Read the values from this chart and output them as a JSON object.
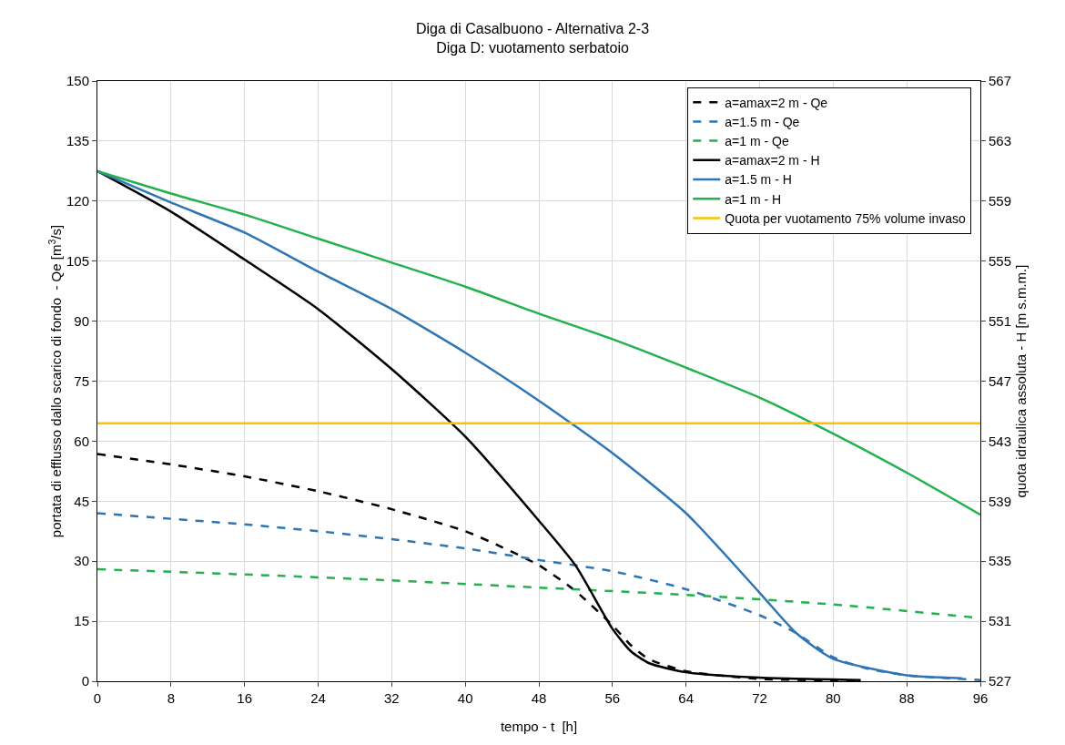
{
  "chart_data": {
    "type": "line",
    "title": "Diga di Casalbuono - Alternativa 2-3",
    "subtitle": "Diga D: vuotamento serbatoio",
    "xlabel": "tempo - t  [h]",
    "ylabel": "portata di efflusso dallo scarico di fondo  - Qe [m$^{3}$/s]",
    "y2label": "quota idraulica assoluta - H [m s.m.m.]",
    "xlim": [
      0,
      96
    ],
    "xticks": [
      0,
      8,
      16,
      24,
      32,
      40,
      48,
      56,
      64,
      72,
      80,
      88,
      96
    ],
    "ylim": [
      0,
      150
    ],
    "yticks": [
      0,
      15,
      30,
      45,
      60,
      75,
      90,
      105,
      120,
      135,
      150
    ],
    "y2lim": [
      527,
      567
    ],
    "y2ticks": [
      527,
      531,
      535,
      539,
      543,
      547,
      551,
      555,
      559,
      563,
      567
    ],
    "grid": true,
    "legend": "top right",
    "series": [
      {
        "name": "a=amax=2 m - Qe",
        "color": "#000000",
        "line_style": "dashed",
        "x": [
          0,
          8,
          16,
          24,
          32,
          40,
          44,
          48,
          52,
          56,
          58,
          60,
          64,
          72,
          80,
          83
        ],
        "values": [
          56.8,
          54.2,
          51.2,
          47.5,
          43,
          37.5,
          33.5,
          29,
          22.5,
          14,
          9,
          5.5,
          2.5,
          0.6,
          0.2,
          0.1
        ]
      },
      {
        "name": "a=1.5 m - Qe",
        "color": "#2e75b6",
        "line_style": "dashed",
        "x": [
          0,
          8,
          16,
          24,
          32,
          40,
          48,
          56,
          64,
          72,
          76,
          80,
          84,
          88,
          96
        ],
        "values": [
          42,
          40.6,
          39.2,
          37.5,
          35.5,
          33.2,
          30.3,
          27.5,
          23,
          16.5,
          12,
          6,
          3,
          1.5,
          0.3
        ]
      },
      {
        "name": "a=1 m - Qe",
        "color": "#22b14c",
        "line_style": "dashed",
        "x": [
          0,
          16,
          32,
          48,
          64,
          80,
          96
        ],
        "values": [
          28,
          26.7,
          25.2,
          23.4,
          21.6,
          19.2,
          15.8
        ]
      },
      {
        "name": "a=amax=2 m - H",
        "color": "#000000",
        "line_style": "solid",
        "axis": "y2",
        "x": [
          0,
          8,
          16,
          24,
          32,
          40,
          48,
          52,
          56,
          58,
          60,
          64,
          72,
          83
        ],
        "values": [
          561,
          558.3,
          555.1,
          551.8,
          547.8,
          543.3,
          537.7,
          534.7,
          530.5,
          529,
          528.2,
          527.6,
          527.24,
          527.08
        ]
      },
      {
        "name": "a=1.5 m - H",
        "color": "#2e75b6",
        "line_style": "solid",
        "axis": "y2",
        "x": [
          0,
          8,
          16,
          24,
          32,
          40,
          48,
          56,
          64,
          72,
          76,
          80,
          88,
          94
        ],
        "values": [
          561,
          558.9,
          556.9,
          554.3,
          551.8,
          548.9,
          545.7,
          542.2,
          538.2,
          532.9,
          530.2,
          528.5,
          527.4,
          527.2
        ]
      },
      {
        "name": "a=1 m - H",
        "color": "#22b14c",
        "line_style": "solid",
        "axis": "y2",
        "x": [
          0,
          8,
          16,
          24,
          32,
          40,
          48,
          56,
          64,
          72,
          80,
          88,
          96
        ],
        "values": [
          561,
          559.5,
          558.1,
          556.5,
          554.9,
          553.3,
          551.5,
          549.8,
          547.9,
          545.9,
          543.5,
          540.9,
          538.1
        ]
      },
      {
        "name": "Quota per vuotamento 75% volume invaso",
        "color": "#ffc000",
        "line_style": "solid",
        "axis": "y2",
        "x": [
          0,
          96
        ],
        "values": [
          544.2,
          544.2
        ]
      }
    ]
  }
}
